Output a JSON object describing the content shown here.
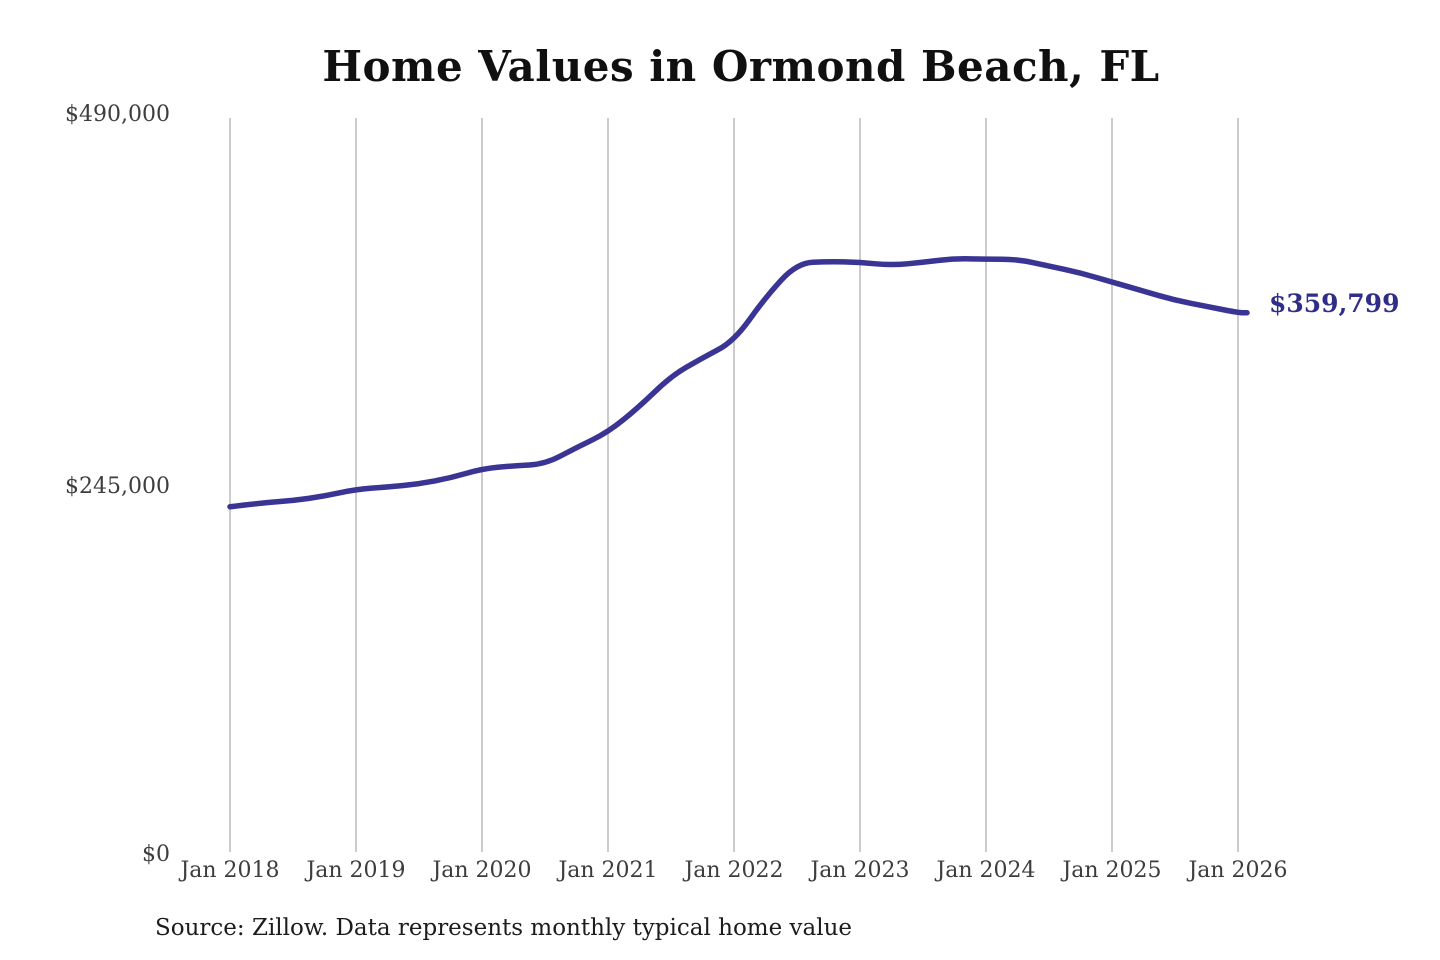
{
  "title": "Home Values in Ormond Beach, FL",
  "source_note": "Source: Zillow. Data represents monthly typical home value",
  "end_value_label": "$359,799",
  "colors": {
    "line": "#3a3494",
    "grid": "#cccccc",
    "axis_text": "#3d3d3d",
    "title_text": "#101010",
    "end_label_text": "#2f2d87",
    "background": "#ffffff"
  },
  "y_axis": {
    "ticks": [
      {
        "label": "$490,000",
        "value": 490000
      },
      {
        "label": "$245,000",
        "value": 245000
      },
      {
        "label": "$0",
        "value": 0
      }
    ]
  },
  "x_axis": {
    "ticks": [
      "Jan 2018",
      "Jan 2019",
      "Jan 2020",
      "Jan 2021",
      "Jan 2022",
      "Jan 2023",
      "Jan 2024",
      "Jan 2025",
      "Jan 2026"
    ]
  },
  "chart_data": {
    "type": "line",
    "title": "Home Values in Ormond Beach, FL",
    "series_name": "Monthly typical home value (USD)",
    "x": [
      "Jan 2018",
      "Apr 2018",
      "Jul 2018",
      "Oct 2018",
      "Jan 2019",
      "Apr 2019",
      "Jul 2019",
      "Oct 2019",
      "Jan 2020",
      "Apr 2020",
      "Jul 2020",
      "Oct 2020",
      "Jan 2021",
      "Apr 2021",
      "Jul 2021",
      "Oct 2021",
      "Jan 2022",
      "Apr 2022",
      "Jul 2022",
      "Oct 2022",
      "Jan 2023",
      "Apr 2023",
      "Jul 2023",
      "Oct 2023",
      "Jan 2024",
      "Apr 2024",
      "Jul 2024",
      "Oct 2024",
      "Jan 2025",
      "Apr 2025",
      "Jul 2025",
      "Oct 2025",
      "Jan 2026"
    ],
    "values": [
      232000,
      234500,
      236000,
      239000,
      243500,
      245000,
      247000,
      251000,
      257000,
      259000,
      260000,
      271000,
      281000,
      298000,
      318000,
      330000,
      341000,
      370000,
      392500,
      393500,
      393000,
      391000,
      393000,
      395500,
      395000,
      395000,
      390500,
      386000,
      380000,
      374000,
      368000,
      364000,
      359799
    ],
    "end_value": 359799,
    "end_label": "$359,799",
    "xlabel": "",
    "ylabel": "",
    "ylim": [
      0,
      490000
    ],
    "yticks": [
      0,
      245000,
      490000
    ],
    "grid": "vertical-only",
    "legend": "none"
  }
}
